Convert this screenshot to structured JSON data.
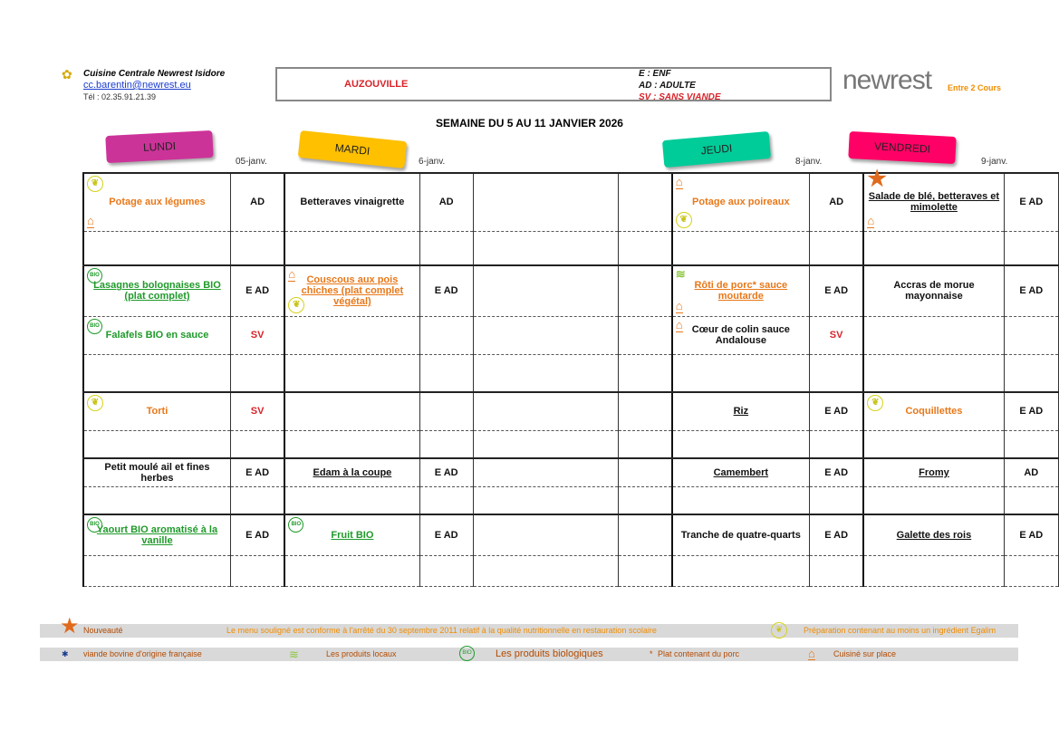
{
  "header": {
    "org": "Cuisine Centrale Newrest Isidore",
    "email": "cc.barentin@newrest.eu",
    "phone": "Tél : 02.35.91.21.39",
    "site": "AUZOUVILLE",
    "legend_e": "E : ENF",
    "legend_ad": "AD : ADULTE",
    "legend_sv": "SV : SANS VIANDE",
    "brand": "newrest",
    "brand2": "Entre 2 Cours",
    "week": "SEMAINE DU 5 AU 11 JANVIER 2026"
  },
  "days": [
    {
      "label": "LUNDI",
      "date": "05-janv.",
      "color": "#cc3399"
    },
    {
      "label": "MARDI",
      "date": "6-janv.",
      "color": "#ffc000"
    },
    {
      "label": "JEUDI",
      "date": "8-janv.",
      "color": "#00cc99"
    },
    {
      "label": "VENDREDI",
      "date": "9-janv.",
      "color": "#ff0066"
    }
  ],
  "menu": [
    [
      {
        "t": "Potage aux légumes",
        "c": "AD",
        "s": "orange",
        "i": [
          "leaf",
          "house"
        ]
      },
      {
        "t": "Betteraves vinaigrette",
        "c": "AD",
        "s": "black"
      },
      null,
      {
        "t": "Potage aux poireaux",
        "c": "AD",
        "s": "orange",
        "i": [
          "house",
          "leaf"
        ]
      },
      {
        "t": "Salade de blé, betteraves et mimolette",
        "c": "E AD",
        "s": "black u",
        "i": [
          "star",
          "house"
        ]
      }
    ],
    [
      null,
      null,
      null,
      null,
      null
    ],
    [
      {
        "t": "Lasagnes bolognaises BIO (plat complet)",
        "c": "E AD",
        "s": "green u",
        "i": [
          "bio"
        ]
      },
      {
        "t": "Couscous aux pois chiches (plat complet végétal)",
        "c": "E AD",
        "s": "orange u",
        "i": [
          "house",
          "leaf"
        ]
      },
      null,
      {
        "t": "Rôti de porc* sauce moutarde",
        "c": "E AD",
        "s": "orange u",
        "i": [
          "local",
          "house"
        ]
      },
      {
        "t": "Accras de morue mayonnaise",
        "c": "E AD",
        "s": "black"
      }
    ],
    [
      {
        "t": "Falafels BIO en sauce",
        "c": "SV",
        "s": "green",
        "i": [
          "bio"
        ]
      },
      null,
      null,
      {
        "t": "Cœur de colin sauce Andalouse",
        "c": "SV",
        "s": "black",
        "i": [
          "house"
        ]
      },
      null
    ],
    [
      null,
      null,
      null,
      null,
      null
    ],
    [
      {
        "t": "Torti",
        "c": "SV",
        "s": "orange",
        "i": [
          "leaf"
        ]
      },
      null,
      null,
      {
        "t": "Riz",
        "c": "E AD",
        "s": "black u"
      },
      {
        "t": "Coquillettes",
        "c": "E AD",
        "s": "orange",
        "i": [
          "leaf"
        ]
      }
    ],
    [
      null,
      null,
      null,
      null,
      null
    ],
    [
      {
        "t": "Petit moulé ail et fines herbes",
        "c": "E AD",
        "s": "black"
      },
      {
        "t": "Edam à la coupe",
        "c": "E AD",
        "s": "black u"
      },
      null,
      {
        "t": "Camembert",
        "c": "E AD",
        "s": "black u"
      },
      {
        "t": "Fromy",
        "c": "AD",
        "s": "black u"
      }
    ],
    [
      null,
      null,
      null,
      null,
      null
    ],
    [
      {
        "t": "Yaourt BIO aromatisé à la vanille",
        "c": "E AD",
        "s": "green u",
        "i": [
          "bio"
        ]
      },
      {
        "t": "Fruit BIO",
        "c": "E AD",
        "s": "green u",
        "i": [
          "bio"
        ]
      },
      null,
      {
        "t": "Tranche de quatre-quarts",
        "c": "E AD",
        "s": "black"
      },
      {
        "t": "Galette des rois",
        "c": "E AD",
        "s": "black u"
      }
    ],
    [
      null,
      null,
      null,
      null,
      null
    ]
  ],
  "legend": {
    "new": "Nouveauté",
    "conform": "Le menu souligné est conforme à l'arrêté du 30 septembre 2011 relatif à la qualité nutritionnelle en restauration scolaire",
    "egalim": "Préparation contenant au moins un ingrédient Egalim",
    "beef": "viande bovine d'origine française",
    "local": "Les produits locaux",
    "bio": "Les produits biologiques",
    "pork": "Plat contenant du porc",
    "pork_mark": "*",
    "house": "Cuisiné sur place"
  },
  "icon_glyphs": {
    "leaf": "❦",
    "house": "⌂",
    "bio": "BIO",
    "local": "≋",
    "star": "★"
  }
}
